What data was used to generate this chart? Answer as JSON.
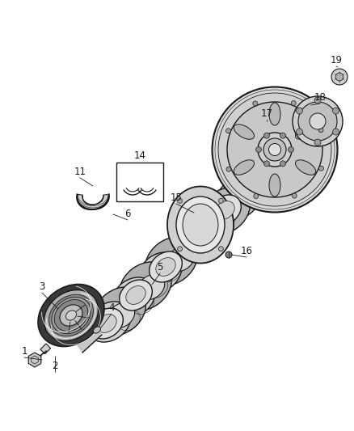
{
  "background_color": "#ffffff",
  "fig_width": 4.38,
  "fig_height": 5.33,
  "dpi": 100,
  "line_color": "#1a1a1a",
  "label_color": "#1a1a1a",
  "part_fontsize": 8.5,
  "gray_light": "#e8e8e8",
  "gray_mid": "#d0d0d0",
  "gray_dark": "#a0a0a0",
  "gray_darker": "#707070",
  "gray_shaft": "#c0c0c0",
  "gray_pulley_outer": "#b0b0b0",
  "gray_pulley_belt": "#888888",
  "gray_flywheel": "#d5d5d5",
  "gray_flywheel_inner": "#c0c0c0",
  "gray_seal_outer": "#d8d8d8",
  "gray_seal_inner": "#b8b8b8"
}
